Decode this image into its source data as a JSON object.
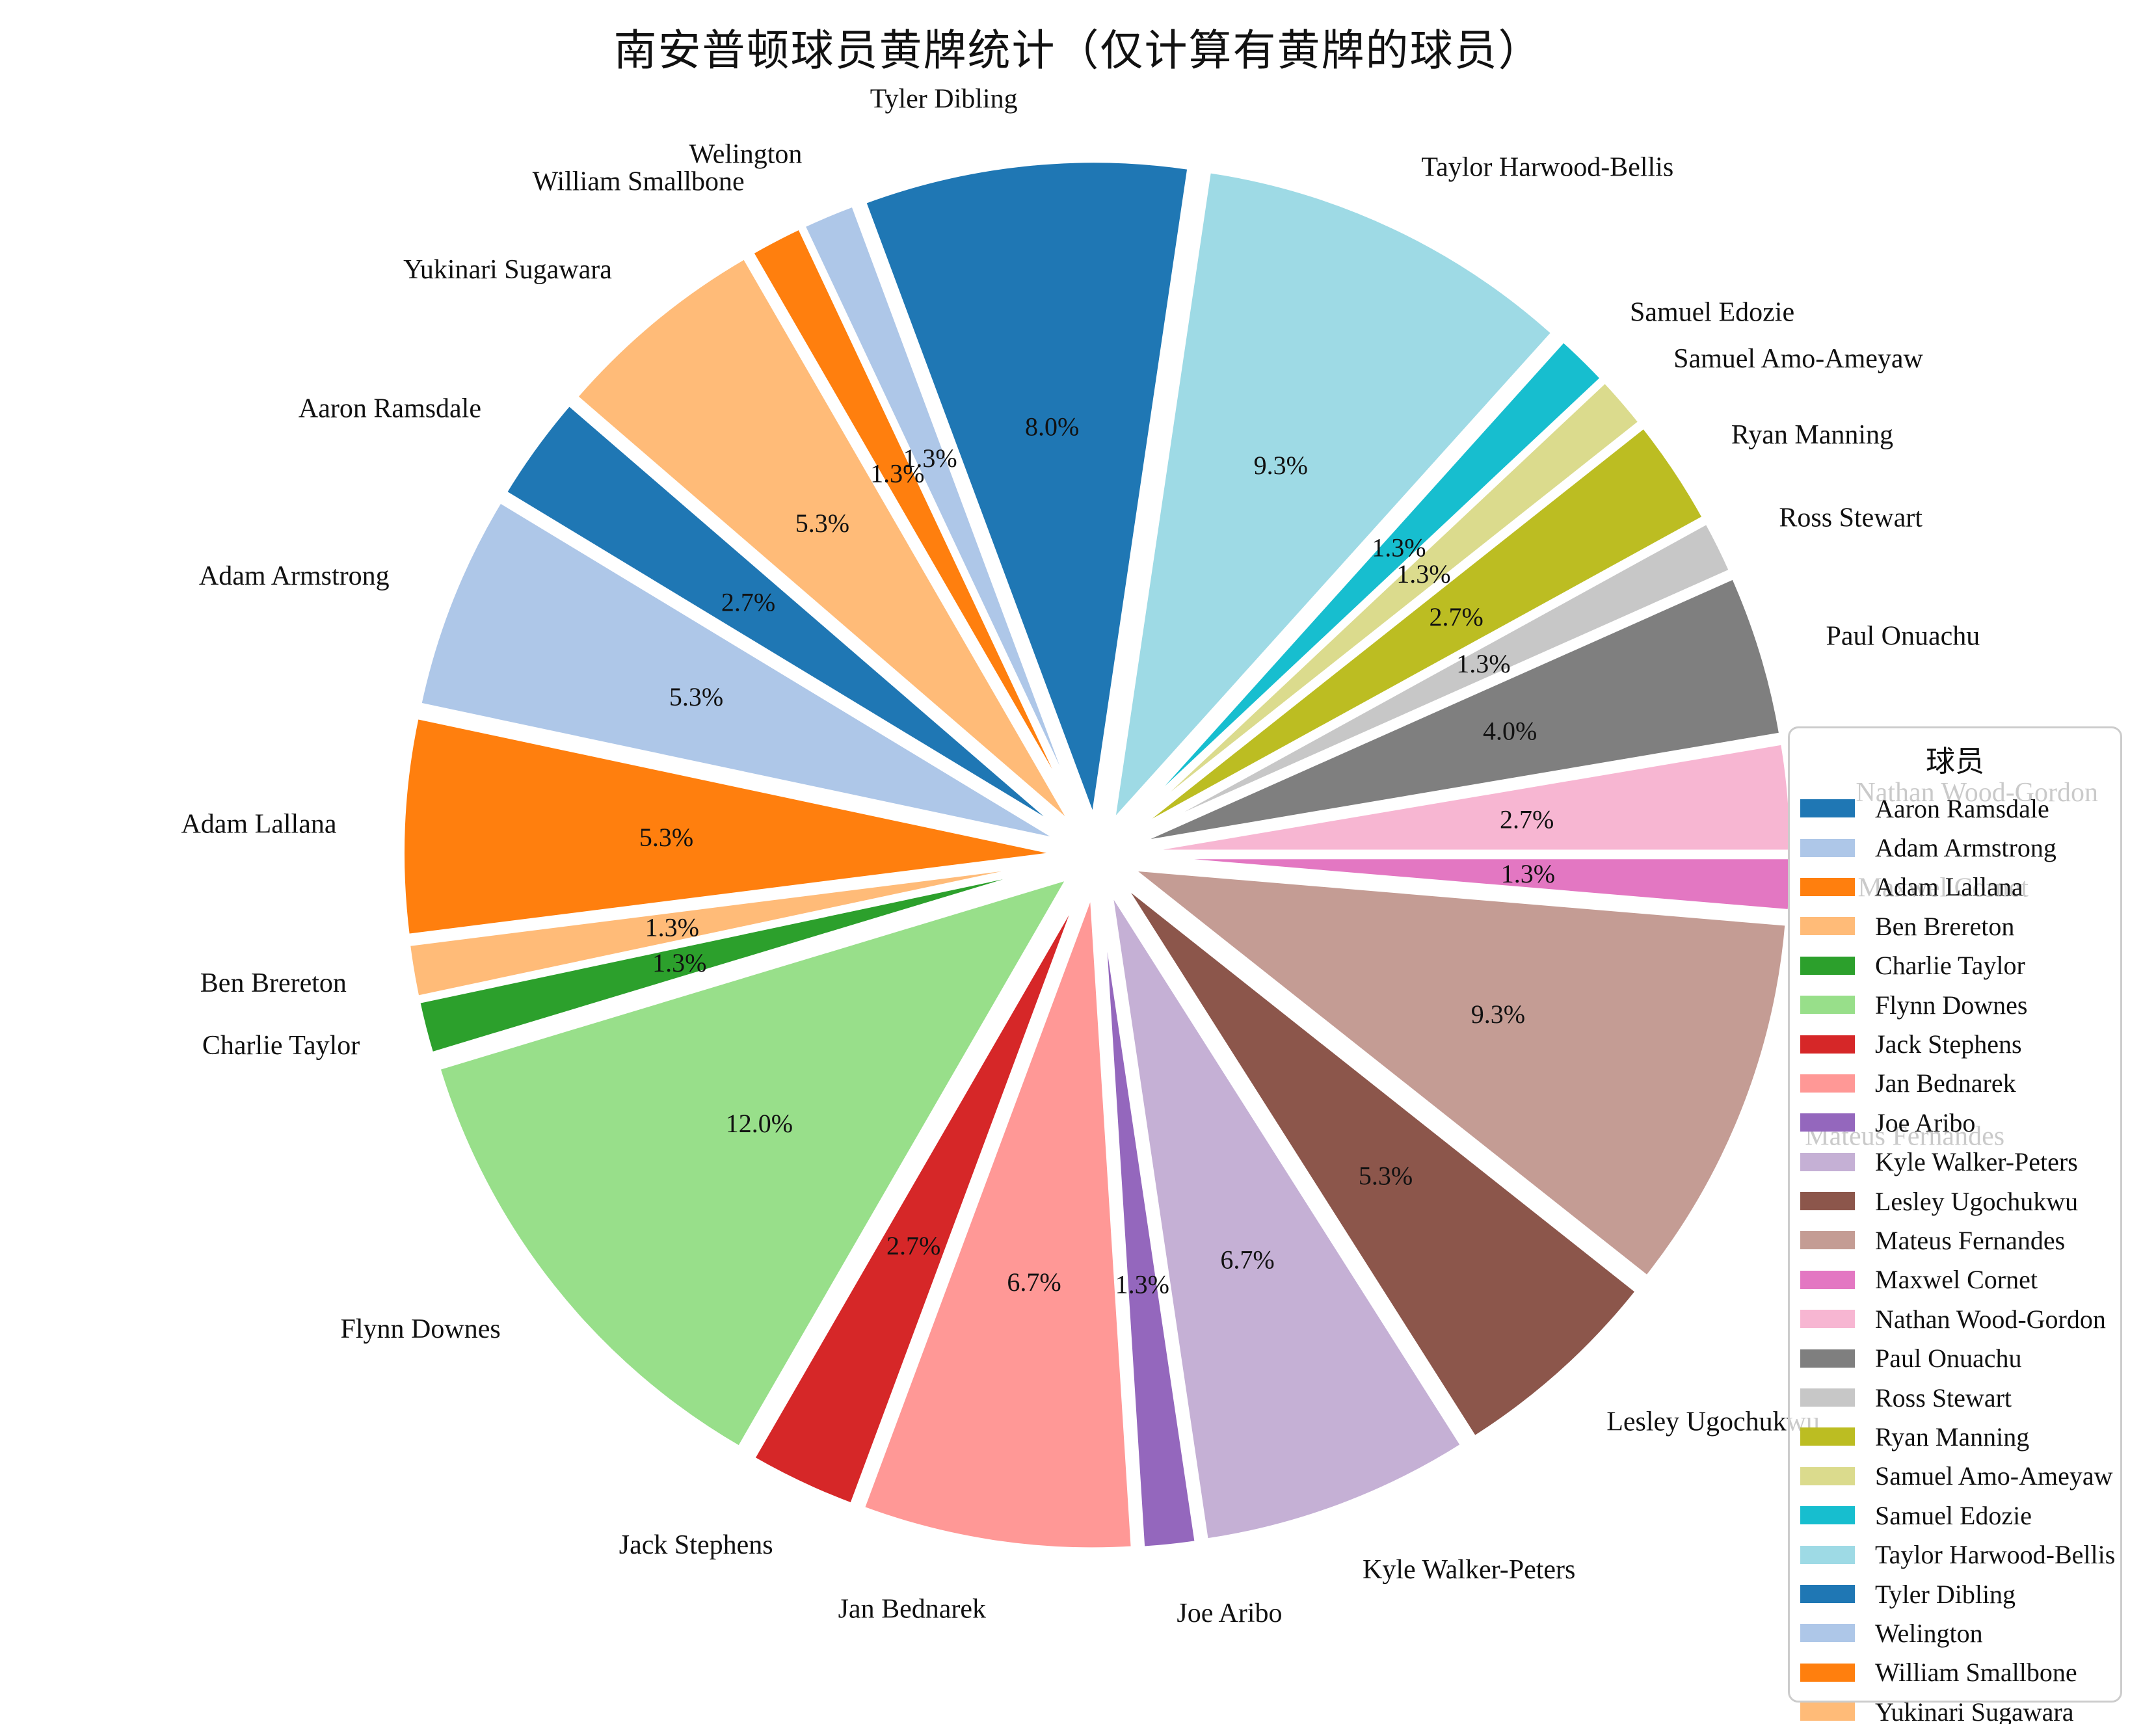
{
  "title": "南安普顿球员黄牌统计（仅计算有黄牌的球员）",
  "legend": {
    "title": "球员"
  },
  "chart_data": {
    "type": "pie",
    "title": "南安普顿球员黄牌统计（仅计算有黄牌的球员）",
    "legend_title": "球员",
    "total_yellow_cards": 75,
    "start_angle_deg": 139.2,
    "direction": "counterclockwise",
    "order": "alphabetical",
    "explode_fraction": 0.053,
    "autopct_format": "%.1f%%",
    "slices": [
      {
        "label": "Aaron Ramsdale",
        "count": 2,
        "pct_label": "2.7%",
        "color": "#1f77b4"
      },
      {
        "label": "Adam Armstrong",
        "count": 4,
        "pct_label": "5.3%",
        "color": "#aec7e8"
      },
      {
        "label": "Adam Lallana",
        "count": 4,
        "pct_label": "5.3%",
        "color": "#ff7f0e"
      },
      {
        "label": "Ben Brereton",
        "count": 1,
        "pct_label": "1.3%",
        "color": "#ffbb78"
      },
      {
        "label": "Charlie Taylor",
        "count": 1,
        "pct_label": "1.3%",
        "color": "#2ca02c"
      },
      {
        "label": "Flynn Downes",
        "count": 9,
        "pct_label": "12.0%",
        "color": "#98df8a"
      },
      {
        "label": "Jack Stephens",
        "count": 2,
        "pct_label": "2.7%",
        "color": "#d62728"
      },
      {
        "label": "Jan Bednarek",
        "count": 5,
        "pct_label": "6.7%",
        "color": "#ff9896"
      },
      {
        "label": "Joe Aribo",
        "count": 1,
        "pct_label": "1.3%",
        "color": "#9467bd"
      },
      {
        "label": "Kyle Walker-Peters",
        "count": 5,
        "pct_label": "6.7%",
        "color": "#c5b0d5"
      },
      {
        "label": "Lesley Ugochukwu",
        "count": 4,
        "pct_label": "5.3%",
        "color": "#8c564b"
      },
      {
        "label": "Mateus Fernandes",
        "count": 7,
        "pct_label": "9.3%",
        "color": "#c49c94"
      },
      {
        "label": "Maxwel Cornet",
        "count": 1,
        "pct_label": "1.3%",
        "color": "#e377c2"
      },
      {
        "label": "Nathan Wood-Gordon",
        "count": 2,
        "pct_label": "2.7%",
        "color": "#f7b6d2"
      },
      {
        "label": "Paul Onuachu",
        "count": 3,
        "pct_label": "4.0%",
        "color": "#7f7f7f"
      },
      {
        "label": "Ross Stewart",
        "count": 1,
        "pct_label": "1.3%",
        "color": "#c7c7c7"
      },
      {
        "label": "Ryan Manning",
        "count": 2,
        "pct_label": "2.7%",
        "color": "#bcbd22"
      },
      {
        "label": "Samuel Amo-Ameyaw",
        "count": 1,
        "pct_label": "1.3%",
        "color": "#dbdb8d"
      },
      {
        "label": "Samuel Edozie",
        "count": 1,
        "pct_label": "1.3%",
        "color": "#17becf"
      },
      {
        "label": "Taylor Harwood-Bellis",
        "count": 7,
        "pct_label": "9.3%",
        "color": "#9edae5"
      },
      {
        "label": "Tyler Dibling",
        "count": 6,
        "pct_label": "8.0%",
        "color": "#1f77b4"
      },
      {
        "label": "Welington",
        "count": 1,
        "pct_label": "1.3%",
        "color": "#aec7e8"
      },
      {
        "label": "William Smallbone",
        "count": 1,
        "pct_label": "1.3%",
        "color": "#ff7f0e"
      },
      {
        "label": "Yukinari Sugawara",
        "count": 4,
        "pct_label": "5.3%",
        "color": "#ffbb78"
      }
    ]
  }
}
